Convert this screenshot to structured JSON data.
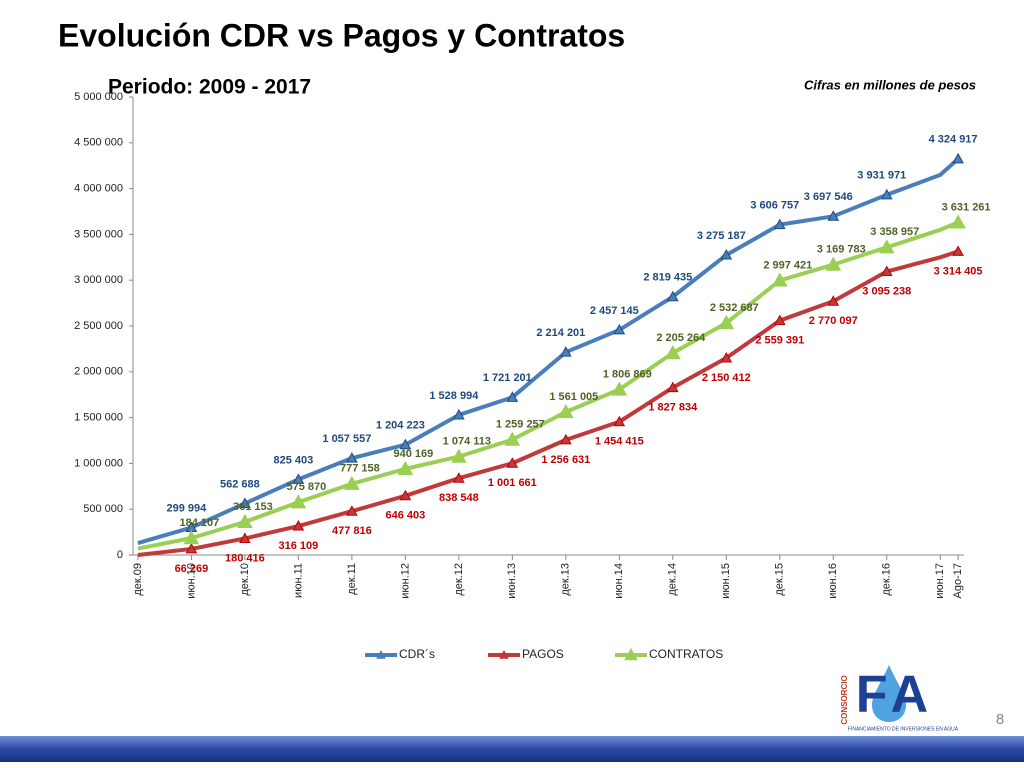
{
  "slide": {
    "title": "Evolución CDR vs Pagos y Contratos",
    "subtitle": "Periodo: 2009 - 2017",
    "note": "Cifras en millones de pesos",
    "page_number": "8",
    "logo": {
      "side": "CONSORCIO",
      "letters": "FA",
      "tagline": "FINANCIAMIENTO DE INVERSIONES EN AGUA"
    }
  },
  "chart_data": {
    "type": "line",
    "x": [
      "2009-12",
      "2010-06",
      "2010-12",
      "2011-06",
      "2011-12",
      "2012-06",
      "2012-12",
      "2013-06",
      "2013-12",
      "2014-06",
      "2014-12",
      "2015-06",
      "2015-12",
      "2016-06",
      "2016-12",
      "2017-06",
      "2017-08"
    ],
    "xlim": [
      "2009-11",
      "2017-09"
    ],
    "xticks": [
      {
        "value": "2009-12",
        "label": "дек.09"
      },
      {
        "value": "2010-06",
        "label": "июн.10"
      },
      {
        "value": "2010-12",
        "label": "дек.10"
      },
      {
        "value": "2011-06",
        "label": "июн.11"
      },
      {
        "value": "2011-12",
        "label": "дек.11"
      },
      {
        "value": "2012-06",
        "label": "июн.12"
      },
      {
        "value": "2012-12",
        "label": "дек.12"
      },
      {
        "value": "2013-06",
        "label": "июн.13"
      },
      {
        "value": "2013-12",
        "label": "дек.13"
      },
      {
        "value": "2014-06",
        "label": "июн.14"
      },
      {
        "value": "2014-12",
        "label": "дек.14"
      },
      {
        "value": "2015-06",
        "label": "июн.15"
      },
      {
        "value": "2015-12",
        "label": "дек.15"
      },
      {
        "value": "2016-06",
        "label": "июн.16"
      },
      {
        "value": "2016-12",
        "label": "дек.16"
      },
      {
        "value": "2017-06",
        "label": "июн.17"
      },
      {
        "value": "2017-08",
        "label": "Ago-17"
      }
    ],
    "ylim": [
      0,
      5000000
    ],
    "yticks": [
      0,
      {
        "value": 500000,
        "label": "500 000"
      },
      {
        "value": 1000000,
        "label": "1 000 000"
      },
      {
        "value": 1500000,
        "label": "1 500 000"
      },
      {
        "value": 2000000,
        "label": "2 000 000"
      },
      {
        "value": 2500000,
        "label": "2 500 000"
      },
      {
        "value": 3000000,
        "label": "3 000 000"
      },
      {
        "value": 3500000,
        "label": "3 500 000"
      },
      {
        "value": 4000000,
        "label": "4 000 000"
      },
      {
        "value": 4500000,
        "label": "4 500 000"
      },
      {
        "value": 5000000,
        "label": "5 000 000"
      }
    ],
    "legend": "bottom",
    "series": [
      {
        "name": "CDR´s",
        "color": "#4a7ebb",
        "label_color": "#1f497d",
        "values": [
          130000,
          299994,
          562688,
          825403,
          1057557,
          1204223,
          1528994,
          1721201,
          2214201,
          2457145,
          2819435,
          3275187,
          3606757,
          3697546,
          3931971,
          4150000,
          4324917
        ],
        "value_labels": [
          null,
          "299 994",
          "562 688",
          "825 403",
          "1 057 557",
          "1 204 223",
          "1 528 994",
          "1 721 201",
          "2 214 201",
          "2 457 145",
          "2 819 435",
          "3 275 187",
          "3 606 757",
          "3 697 546",
          "3 931 971",
          null,
          "4 324 917"
        ]
      },
      {
        "name": "PAGOS",
        "color": "#c0393b",
        "label_color": "#c00000",
        "values": [
          0,
          66269,
          180416,
          316109,
          477816,
          646403,
          838548,
          1001661,
          1256631,
          1454415,
          1827834,
          2150412,
          2559391,
          2770097,
          3095238,
          3250000,
          3314405
        ],
        "value_labels": [
          null,
          "66 269",
          "180 416",
          "316 109",
          "477 816",
          "646 403",
          "838 548",
          "1 001 661",
          "1 256 631",
          "1 454 415",
          "1 827 834",
          "2 150 412",
          "2 559 391",
          "2 770 097",
          "3 095 238",
          null,
          "3 314 405"
        ]
      },
      {
        "name": "CONTRATOS",
        "color": "#9bcf53",
        "label_color": "#4f6228",
        "values": [
          70000,
          184107,
          361153,
          575870,
          777158,
          940169,
          1074113,
          1259257,
          1561005,
          1806869,
          2205264,
          2532687,
          2997421,
          3169783,
          3358957,
          3550000,
          3631261
        ],
        "value_labels": [
          null,
          "184 107",
          "361 153",
          "575 870",
          "777 158",
          "940 169",
          "1 074 113",
          "1 259 257",
          "1 561 005",
          "1 806 869",
          "2 205 264",
          "2 532 687",
          "2 997 421",
          "3 169 783",
          "3 358 957",
          null,
          "3 631 261"
        ]
      }
    ]
  }
}
